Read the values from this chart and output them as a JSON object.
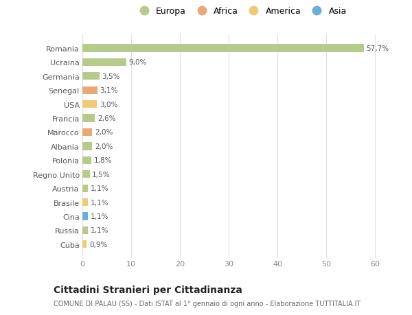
{
  "countries": [
    "Romania",
    "Ucraina",
    "Germania",
    "Senegal",
    "USA",
    "Francia",
    "Marocco",
    "Albania",
    "Polonia",
    "Regno Unito",
    "Austria",
    "Brasile",
    "Cina",
    "Russia",
    "Cuba"
  ],
  "values": [
    57.7,
    9.0,
    3.5,
    3.1,
    3.0,
    2.6,
    2.0,
    2.0,
    1.8,
    1.5,
    1.1,
    1.1,
    1.1,
    1.1,
    0.9
  ],
  "labels": [
    "57,7%",
    "9,0%",
    "3,5%",
    "3,1%",
    "3,0%",
    "2,6%",
    "2,0%",
    "2,0%",
    "1,8%",
    "1,5%",
    "1,1%",
    "1,1%",
    "1,1%",
    "1,1%",
    "0,9%"
  ],
  "categories": [
    "Europa",
    "Africa",
    "America",
    "Asia"
  ],
  "bar_colors": [
    "#b5cb8b",
    "#b5cb8b",
    "#b5cb8b",
    "#e8a97a",
    "#f0c97a",
    "#b5cb8b",
    "#e8a97a",
    "#b5cb8b",
    "#b5cb8b",
    "#b5cb8b",
    "#b5cb8b",
    "#f0c97a",
    "#6baed6",
    "#b5cb8b",
    "#f0c97a"
  ],
  "legend_colors": [
    "#b5cb8b",
    "#e8a97a",
    "#f0c97a",
    "#6baed6"
  ],
  "background_color": "#ffffff",
  "grid_color": "#e0e0e0",
  "title": "Cittadini Stranieri per Cittadinanza",
  "subtitle": "COMUNE DI PALAU (SS) - Dati ISTAT al 1° gennaio di ogni anno - Elaborazione TUTTITALIA.IT",
  "xlim": [
    0,
    65
  ],
  "xticks": [
    0,
    10,
    20,
    30,
    40,
    50,
    60
  ]
}
